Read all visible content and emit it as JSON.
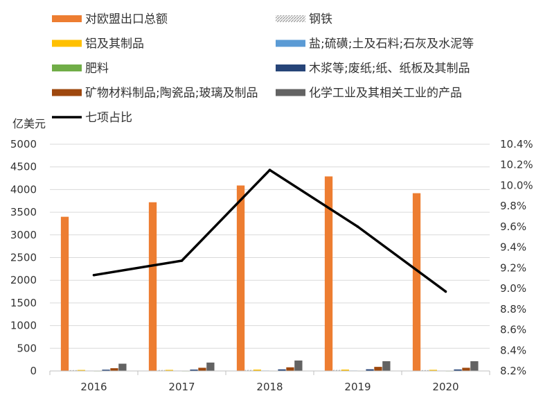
{
  "chart_data": {
    "type": "bar",
    "categories": [
      "2016",
      "2017",
      "2018",
      "2019",
      "2020"
    ],
    "y_unit": "亿美元",
    "ylim": [
      0,
      5000
    ],
    "y_ticks": [
      "0",
      "500",
      "1000",
      "1500",
      "2000",
      "2500",
      "3000",
      "3500",
      "4000",
      "4500",
      "5000"
    ],
    "y2lim": [
      8.2,
      10.4
    ],
    "y2_ticks": [
      "8.2%",
      "8.4%",
      "8.6%",
      "8.8%",
      "9.0%",
      "9.2%",
      "9.4%",
      "9.6%",
      "9.8%",
      "10.0%",
      "10.2%",
      "10.4%"
    ],
    "grid": true,
    "legend_position": "top",
    "series": [
      {
        "name": "对欧盟出口总额",
        "kind": "bar",
        "color": "#ED7D31",
        "values": [
          3400,
          3720,
          4090,
          4290,
          3920
        ]
      },
      {
        "name": "钢铁",
        "kind": "bar",
        "color": "#A5A5A5",
        "values": [
          18,
          20,
          22,
          22,
          18
        ],
        "pattern": "stripe"
      },
      {
        "name": "铝及其制品",
        "kind": "bar",
        "color": "#FFC000",
        "values": [
          22,
          24,
          30,
          30,
          25
        ]
      },
      {
        "name": "盐;硫磺;土及石料;石灰及水泥等",
        "kind": "bar",
        "color": "#5B9BD5",
        "values": [
          8,
          8,
          9,
          9,
          8
        ]
      },
      {
        "name": "肥料",
        "kind": "bar",
        "color": "#70AD47",
        "values": [
          3,
          3,
          4,
          4,
          3
        ]
      },
      {
        "name": "木浆等;废纸;纸、纸板及其制品",
        "kind": "bar",
        "color": "#264478",
        "values": [
          28,
          30,
          35,
          37,
          33
        ]
      },
      {
        "name": "矿物材料制品;陶瓷品;玻璃及制品",
        "kind": "bar",
        "color": "#9E480E",
        "values": [
          60,
          70,
          80,
          90,
          70
        ]
      },
      {
        "name": "化学工业及其相关工业的产品",
        "kind": "bar",
        "color": "#636363",
        "values": [
          160,
          185,
          230,
          215,
          215
        ]
      },
      {
        "name": "七项占比",
        "kind": "line",
        "color": "#000000",
        "axis": "right",
        "values": [
          9.13,
          9.27,
          10.15,
          9.6,
          8.97
        ]
      }
    ]
  }
}
